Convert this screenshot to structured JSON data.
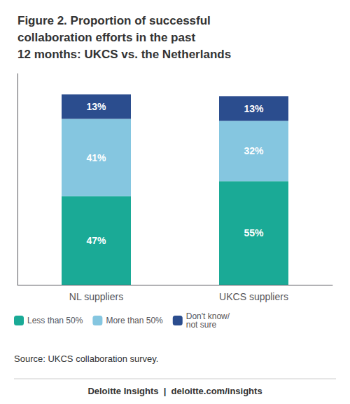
{
  "chart_data": {
    "type": "bar",
    "title": "Figure 2. Proportion of successful\ncollaboration efforts in the past\n12 months: UKCS vs. the Netherlands",
    "categories": [
      "NL suppliers",
      "UKCS suppliers"
    ],
    "series": [
      {
        "name": "Less than 50%",
        "color": "#1aaa96",
        "values": [
          47,
          55
        ],
        "value_labels": [
          "47%",
          "55%"
        ]
      },
      {
        "name": "More than 50%",
        "color": "#85c6e0",
        "values": [
          41,
          32
        ],
        "value_labels": [
          "41%",
          "32%"
        ]
      },
      {
        "name": "Don't know/\nnot sure",
        "color": "#2b4d8e",
        "values": [
          13,
          13
        ],
        "value_labels": [
          "13%",
          "13%"
        ]
      }
    ],
    "stacked": true,
    "data_labels": true,
    "ylim": [
      0,
      112
    ],
    "tick_labels": "x",
    "grid": false,
    "legend": "lower left",
    "annotations": [
      "Source: UKCS collaboration survey.",
      "Deloitte Insights  |  deloitte.com/insights"
    ]
  }
}
